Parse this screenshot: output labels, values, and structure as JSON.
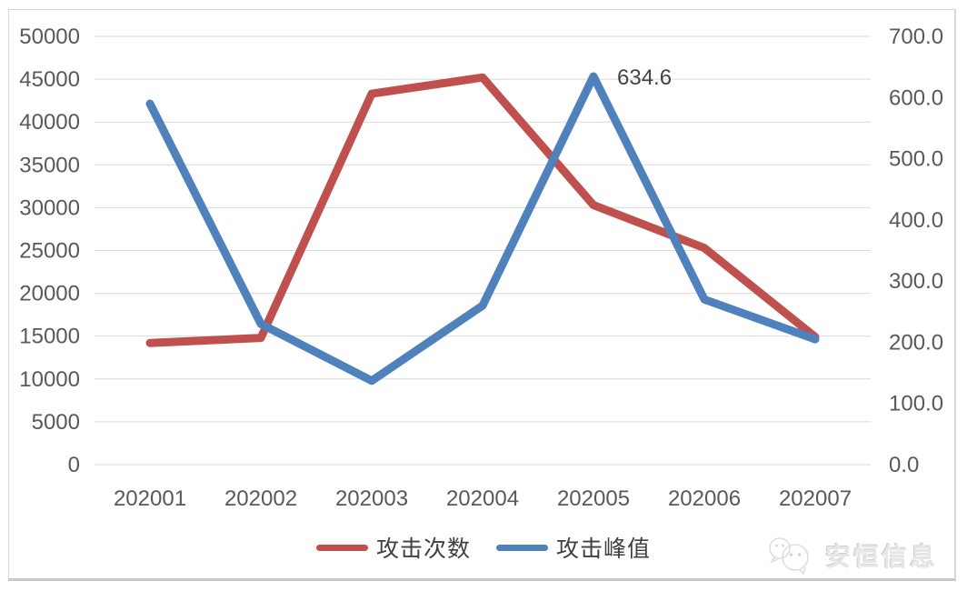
{
  "watermark": {
    "text": "安恒信息"
  },
  "chart_data": {
    "type": "line",
    "title": "",
    "categories": [
      "202001",
      "202002",
      "202003",
      "202004",
      "202005",
      "202006",
      "202007"
    ],
    "series": [
      {
        "name": "攻击次数",
        "color": "#c0504d",
        "axis": "left",
        "values": [
          14200,
          14800,
          43300,
          45200,
          30300,
          25300,
          14900
        ]
      },
      {
        "name": "攻击峰值",
        "color": "#4f81bd",
        "axis": "right",
        "values": [
          590,
          230,
          137,
          260,
          634.6,
          270,
          205
        ]
      }
    ],
    "left_axis": {
      "min": 0,
      "max": 50000,
      "step": 5000,
      "tick_labels": [
        "0",
        "5000",
        "10000",
        "15000",
        "20000",
        "25000",
        "30000",
        "35000",
        "40000",
        "45000",
        "50000"
      ]
    },
    "right_axis": {
      "min": 0,
      "max": 700,
      "step": 100,
      "tick_labels": [
        "0.0",
        "100.0",
        "200.0",
        "300.0",
        "400.0",
        "500.0",
        "600.0",
        "700.0"
      ]
    },
    "annotation": {
      "text": "634.6",
      "series_index": 1,
      "point_index": 4
    },
    "grid": true,
    "grid_color": "#d9d9d9",
    "text_color": "#595959",
    "legend_position": "bottom"
  }
}
